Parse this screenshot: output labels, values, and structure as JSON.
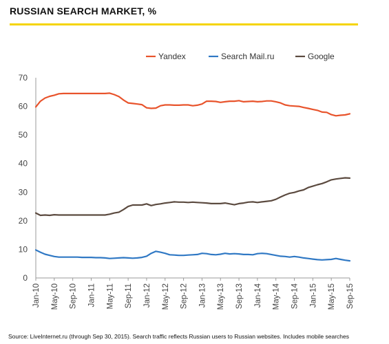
{
  "header": {
    "title": "RUSSIAN SEARCH MARKET, %",
    "accent_color": "#f5d400"
  },
  "footer": {
    "source": "Source: LiveInternet.ru (through Sep 30, 2015). Search traffic reflects Russian users to Russian websites. Includes mobile searches"
  },
  "chart_data": {
    "type": "line",
    "title": "",
    "xlabel": "",
    "ylabel": "",
    "ylim": [
      0,
      70
    ],
    "yticks": [
      0,
      10,
      20,
      30,
      40,
      50,
      60,
      70
    ],
    "grid": false,
    "legend_position": "top",
    "x_tick_labels": [
      "Jan-10",
      "May-10",
      "Sep-10",
      "Jan-11",
      "May-11",
      "Sep-11",
      "Jan-12",
      "May-12",
      "Sep-12",
      "Jan-13",
      "May-13",
      "Sep-13",
      "Jan-14",
      "May-14",
      "Sep-14",
      "Jan-15",
      "May-15",
      "Sep-15"
    ],
    "x_start": "Jan-10",
    "points_per_tick": 4,
    "series": [
      {
        "name": "Yandex",
        "color": "#e8532b",
        "values": [
          59.8,
          61.8,
          62.9,
          63.5,
          63.9,
          64.4,
          64.5,
          64.5,
          64.5,
          64.5,
          64.5,
          64.5,
          64.5,
          64.5,
          64.5,
          64.5,
          64.6,
          64.1,
          63.4,
          62.2,
          61.2,
          61.0,
          60.8,
          60.6,
          59.5,
          59.3,
          59.4,
          60.2,
          60.5,
          60.5,
          60.4,
          60.4,
          60.5,
          60.5,
          60.2,
          60.4,
          60.8,
          61.8,
          61.8,
          61.7,
          61.4,
          61.6,
          61.8,
          61.8,
          62.0,
          61.6,
          61.7,
          61.8,
          61.6,
          61.7,
          61.9,
          61.9,
          61.6,
          61.2,
          60.5,
          60.2,
          60.1,
          60.0,
          59.6,
          59.3,
          58.9,
          58.6,
          58.0,
          57.9,
          57.1,
          56.7,
          56.9,
          57.0,
          57.4
        ]
      },
      {
        "name": "Search Mail.ru",
        "color": "#2f78c4",
        "values": [
          9.8,
          9.0,
          8.3,
          7.9,
          7.5,
          7.3,
          7.3,
          7.3,
          7.3,
          7.3,
          7.2,
          7.2,
          7.2,
          7.1,
          7.1,
          7.0,
          6.8,
          6.9,
          7.0,
          7.1,
          7.0,
          6.9,
          7.0,
          7.2,
          7.6,
          8.6,
          9.3,
          9.0,
          8.6,
          8.1,
          8.0,
          7.9,
          7.9,
          8.0,
          8.1,
          8.2,
          8.6,
          8.5,
          8.2,
          8.1,
          8.3,
          8.6,
          8.4,
          8.5,
          8.4,
          8.2,
          8.2,
          8.1,
          8.5,
          8.6,
          8.5,
          8.2,
          7.9,
          7.6,
          7.5,
          7.3,
          7.5,
          7.3,
          7.0,
          6.8,
          6.6,
          6.4,
          6.3,
          6.4,
          6.5,
          6.8,
          6.5,
          6.2,
          6.0
        ]
      },
      {
        "name": "Google",
        "color": "#5b4a3f",
        "values": [
          22.7,
          21.9,
          22.0,
          21.9,
          22.1,
          22.0,
          22.0,
          22.0,
          22.0,
          22.0,
          22.0,
          22.0,
          22.0,
          22.0,
          22.0,
          22.0,
          22.3,
          22.7,
          23.0,
          23.9,
          25.0,
          25.5,
          25.5,
          25.5,
          25.9,
          25.3,
          25.7,
          25.9,
          26.2,
          26.4,
          26.6,
          26.5,
          26.5,
          26.4,
          26.5,
          26.4,
          26.3,
          26.2,
          26.0,
          26.0,
          26.0,
          26.2,
          25.9,
          25.6,
          26.0,
          26.2,
          26.5,
          26.6,
          26.4,
          26.6,
          26.8,
          27.0,
          27.5,
          28.3,
          29.0,
          29.6,
          29.9,
          30.4,
          30.8,
          31.6,
          32.1,
          32.6,
          33.0,
          33.6,
          34.3,
          34.6,
          34.8,
          35.0,
          34.9
        ]
      }
    ]
  }
}
